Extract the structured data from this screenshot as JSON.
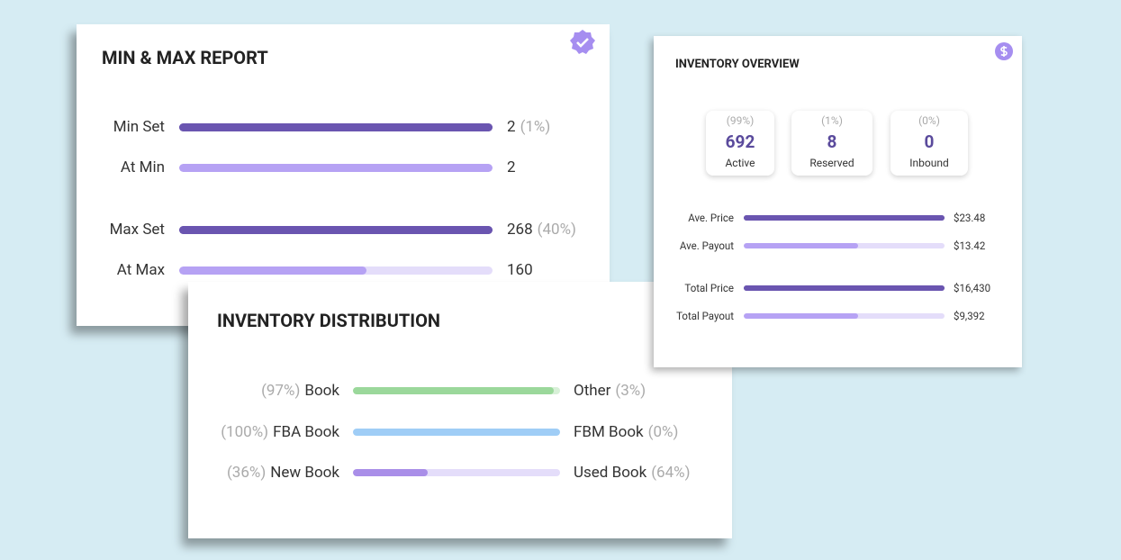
{
  "min_max_report": {
    "title": "MIN & MAX REPORT",
    "groups": [
      {
        "rows": [
          {
            "label": "Min Set",
            "value": 2,
            "percent": {
              "value": 1,
              "label": "(1%)"
            }
          },
          {
            "label": "At Min",
            "value": 2
          }
        ]
      },
      {
        "rows": [
          {
            "label": "Max Set",
            "value": 268,
            "percent": {
              "value": 40,
              "label": "(40%)"
            }
          },
          {
            "label": "At Max",
            "value": 160
          }
        ]
      }
    ]
  },
  "inventory_distribution": {
    "title": "INVENTORY DISTRIBUTION",
    "rows": [
      {
        "color": "#9bd89b",
        "track": "#d8f0d8",
        "left": {
          "label": "Book",
          "percent": {
            "value": 97,
            "label": "(97%)"
          }
        },
        "right": {
          "label": "Other",
          "percent": {
            "value": 3,
            "label": "(3%)"
          }
        }
      },
      {
        "color": "#9fcdf6",
        "track": "#d9ebfb",
        "left": {
          "label": "FBA Book",
          "percent": {
            "value": 100,
            "label": "(100%)"
          }
        },
        "right": {
          "label": "FBM Book",
          "percent": {
            "value": 0,
            "label": "(0%)"
          }
        }
      },
      {
        "color": "#a98ee8",
        "track": "#e4ddfa",
        "left": {
          "label": "New Book",
          "percent": {
            "value": 36,
            "label": "(36%)"
          }
        },
        "right": {
          "label": "Used Book",
          "percent": {
            "value": 64,
            "label": "(64%)"
          }
        }
      }
    ]
  },
  "inventory_overview": {
    "title": "INVENTORY OVERVIEW",
    "stats": [
      {
        "percent": {
          "value": 99,
          "label": "(99%)"
        },
        "value": 692,
        "label": "Active"
      },
      {
        "percent": {
          "value": 1,
          "label": "(1%)"
        },
        "value": 8,
        "label": "Reserved"
      },
      {
        "percent": {
          "value": 0,
          "label": "(0%)"
        },
        "value": 0,
        "label": "Inbound"
      }
    ],
    "groups": [
      {
        "rows": [
          {
            "label": "Ave. Price",
            "value": {
              "value": 23.48,
              "label": "$23.48"
            }
          },
          {
            "label": "Ave. Payout",
            "value": {
              "value": 13.42,
              "label": "$13.42"
            }
          }
        ]
      },
      {
        "rows": [
          {
            "label": "Total Price",
            "value": {
              "value": 16430,
              "label": "$16,430"
            }
          },
          {
            "label": "Total Payout",
            "value": {
              "value": 9392,
              "label": "$9,392"
            }
          }
        ]
      }
    ]
  }
}
